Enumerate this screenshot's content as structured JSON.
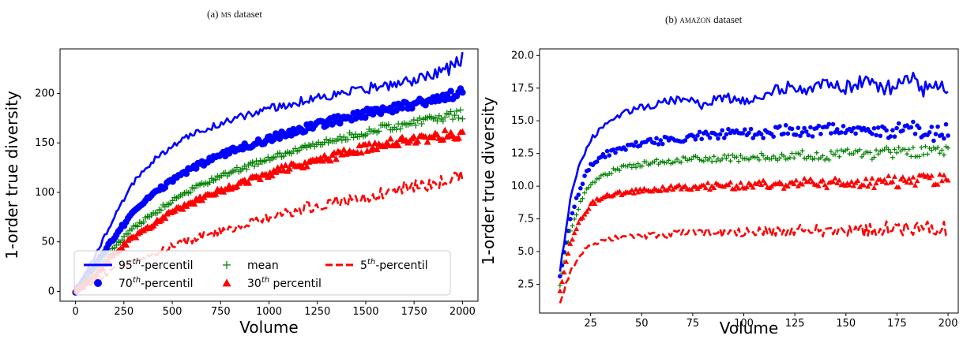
{
  "captions": {
    "a_prefix": "(a) ",
    "a_name": "ms",
    "a_suffix": " dataset",
    "b_prefix": "(b) ",
    "b_name": "amazon",
    "b_suffix": " dataset"
  },
  "chart_data": [
    {
      "type": "line",
      "title": "(a) MS dataset",
      "xlabel": "Volume",
      "ylabel": "1-order true diversity",
      "xlim": [
        -80,
        2080
      ],
      "ylim": [
        -10,
        245
      ],
      "xticks": [
        0,
        250,
        500,
        750,
        1000,
        1250,
        1500,
        1750,
        2000
      ],
      "yticks": [
        0,
        50,
        100,
        150,
        200
      ],
      "legend": {
        "placement": "lower-left",
        "columns": 3
      },
      "series": [
        {
          "name": "95th-percentil",
          "label_base": "95",
          "label_sup": "th",
          "label_rest": "-percentil",
          "style": "solid-line",
          "color": "#0000ff",
          "x": [
            0,
            100,
            200,
            300,
            400,
            500,
            600,
            700,
            800,
            900,
            1000,
            1100,
            1200,
            1300,
            1400,
            1500,
            1600,
            1700,
            1800,
            1900,
            2000
          ],
          "values": [
            0,
            35,
            75,
            110,
            132,
            147,
            158,
            166,
            173,
            179,
            184,
            189,
            194,
            198,
            201,
            205,
            208,
            212,
            216,
            221,
            235
          ]
        },
        {
          "name": "70th-percentil",
          "label_base": "70",
          "label_sup": "th",
          "label_rest": "-percentil",
          "style": "dot",
          "color": "#0000ff",
          "x": [
            0,
            100,
            200,
            300,
            400,
            500,
            600,
            700,
            800,
            900,
            1000,
            1100,
            1200,
            1300,
            1400,
            1500,
            1600,
            1700,
            1800,
            1900,
            2000
          ],
          "values": [
            0,
            25,
            55,
            80,
            98,
            112,
            124,
            133,
            141,
            148,
            154,
            160,
            166,
            171,
            175,
            180,
            184,
            188,
            192,
            196,
            200
          ]
        },
        {
          "name": "mean",
          "label_base": "mean",
          "label_sup": "",
          "label_rest": "",
          "style": "plus",
          "color": "#008000",
          "x": [
            0,
            100,
            200,
            300,
            400,
            500,
            600,
            700,
            800,
            900,
            1000,
            1100,
            1200,
            1300,
            1400,
            1500,
            1600,
            1700,
            1800,
            1900,
            2000
          ],
          "values": [
            0,
            20,
            45,
            64,
            78,
            92,
            103,
            112,
            120,
            127,
            134,
            140,
            146,
            151,
            156,
            161,
            165,
            169,
            173,
            176,
            179
          ]
        },
        {
          "name": "30th percentil",
          "label_base": "30",
          "label_sup": "th",
          "label_rest": " percentil",
          "style": "triangle",
          "color": "#ff0000",
          "x": [
            0,
            100,
            200,
            300,
            400,
            500,
            600,
            700,
            800,
            900,
            1000,
            1100,
            1200,
            1300,
            1400,
            1500,
            1600,
            1700,
            1800,
            1900,
            2000
          ],
          "values": [
            0,
            15,
            38,
            55,
            68,
            80,
            90,
            98,
            106,
            113,
            119,
            125,
            130,
            135,
            140,
            145,
            149,
            152,
            155,
            158,
            160
          ]
        },
        {
          "name": "5th-percentil",
          "label_base": "5",
          "label_sup": "th",
          "label_rest": "-percentil",
          "style": "dashed-line",
          "color": "#ff0000",
          "x": [
            0,
            100,
            200,
            300,
            400,
            500,
            600,
            700,
            800,
            900,
            1000,
            1100,
            1200,
            1300,
            1400,
            1500,
            1600,
            1700,
            1800,
            1900,
            2000
          ],
          "values": [
            0,
            10,
            22,
            30,
            38,
            46,
            52,
            58,
            63,
            68,
            74,
            80,
            85,
            89,
            92,
            96,
            100,
            104,
            108,
            112,
            115
          ]
        }
      ]
    },
    {
      "type": "line",
      "title": "(b) AMAZON dataset",
      "xlabel": "Volume",
      "ylabel": "1-order true diversity",
      "xlim": [
        0,
        205
      ],
      "ylim": [
        0.3,
        20.5
      ],
      "xticks": [
        25,
        50,
        75,
        100,
        125,
        150,
        175,
        200
      ],
      "yticks": [
        2.5,
        5.0,
        7.5,
        10.0,
        12.5,
        15.0,
        17.5,
        20.0
      ],
      "ytick_labels": [
        "2.5",
        "5.0",
        "7.5",
        "10.0",
        "12.5",
        "15.0",
        "17.5",
        "20.0"
      ],
      "series": [
        {
          "name": "95th-percentil",
          "style": "solid-line",
          "color": "#0000ff",
          "x": [
            10,
            15,
            20,
            25,
            30,
            40,
            50,
            60,
            70,
            80,
            90,
            100,
            110,
            120,
            130,
            140,
            150,
            160,
            170,
            180,
            190,
            200
          ],
          "values": [
            3.5,
            9.0,
            12.0,
            13.5,
            14.5,
            15.5,
            16.0,
            16.4,
            16.7,
            16.2,
            16.8,
            16.5,
            17.0,
            17.6,
            17.3,
            17.8,
            17.5,
            18.1,
            17.4,
            18.6,
            17.2,
            17.6
          ]
        },
        {
          "name": "70th-percentil",
          "style": "dot",
          "color": "#0000ff",
          "x": [
            10,
            15,
            20,
            25,
            30,
            40,
            50,
            60,
            70,
            80,
            90,
            100,
            110,
            120,
            130,
            140,
            150,
            160,
            170,
            180,
            190,
            200
          ],
          "values": [
            3.0,
            7.5,
            10.0,
            11.6,
            12.3,
            12.9,
            13.3,
            13.5,
            13.6,
            13.9,
            14.0,
            14.1,
            14.0,
            14.3,
            14.1,
            14.4,
            14.2,
            14.5,
            14.1,
            14.6,
            14.0,
            14.2
          ]
        },
        {
          "name": "mean",
          "style": "plus",
          "color": "#008000",
          "x": [
            10,
            15,
            20,
            25,
            30,
            40,
            50,
            60,
            70,
            80,
            90,
            100,
            110,
            120,
            130,
            140,
            150,
            160,
            170,
            180,
            190,
            200
          ],
          "values": [
            2.5,
            6.5,
            8.8,
            10.2,
            10.8,
            11.4,
            11.7,
            11.9,
            12.0,
            12.1,
            12.1,
            12.2,
            12.3,
            12.2,
            12.4,
            12.3,
            12.5,
            12.4,
            12.6,
            12.5,
            12.7,
            12.6
          ]
        },
        {
          "name": "30th percentil",
          "style": "triangle",
          "color": "#ff0000",
          "x": [
            10,
            15,
            20,
            25,
            30,
            40,
            50,
            60,
            70,
            80,
            90,
            100,
            110,
            120,
            130,
            140,
            150,
            160,
            170,
            180,
            190,
            200
          ],
          "values": [
            2.0,
            5.5,
            7.5,
            8.6,
            9.1,
            9.5,
            9.7,
            9.8,
            9.9,
            10.0,
            10.0,
            10.1,
            10.2,
            10.1,
            10.3,
            10.2,
            10.3,
            10.2,
            10.4,
            10.3,
            10.5,
            10.4
          ]
        },
        {
          "name": "5th-percentil",
          "style": "dashed-line",
          "color": "#ff0000",
          "x": [
            10,
            15,
            20,
            25,
            30,
            40,
            50,
            60,
            70,
            80,
            90,
            100,
            110,
            120,
            130,
            140,
            150,
            160,
            170,
            180,
            190,
            200
          ],
          "values": [
            1.0,
            3.5,
            4.8,
            5.5,
            5.9,
            6.1,
            6.2,
            6.3,
            6.4,
            6.5,
            6.4,
            6.5,
            6.6,
            6.5,
            6.7,
            6.6,
            6.7,
            6.6,
            6.8,
            6.7,
            6.9,
            6.8
          ]
        }
      ]
    }
  ]
}
